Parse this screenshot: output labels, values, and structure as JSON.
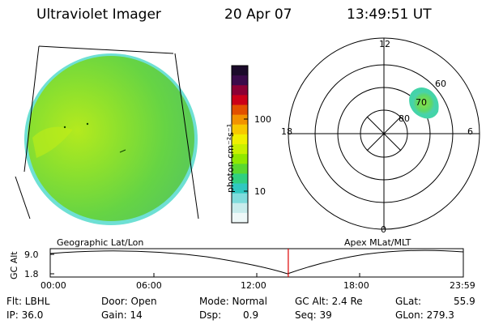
{
  "header": {
    "instrument": "Ultraviolet Imager",
    "date": "20 Apr 07",
    "time": "13:49:51 UT"
  },
  "colorbar": {
    "unit_label": "photon cm⁻²s⁻¹",
    "ticks": [
      "100",
      "10"
    ],
    "colors": [
      "#1b0a2a",
      "#3a0a4a",
      "#8b0034",
      "#cc0018",
      "#e25000",
      "#f29200",
      "#f7c800",
      "#f0f000",
      "#c8f000",
      "#90e800",
      "#5ad830",
      "#30d080",
      "#30c8c0",
      "#80dcdc",
      "#c8ecec",
      "#eef8f8"
    ]
  },
  "polar_plot": {
    "mlt_labels": {
      "top": "12",
      "bottom": "0",
      "left": "18",
      "right": "6"
    },
    "lat_labels": [
      "60",
      "70",
      "80"
    ]
  },
  "timeline": {
    "left_label": "Geographic Lat/Lon",
    "right_label": "Apex MLat/MLT",
    "y_axis_label": "GC Alt",
    "y_ticks": [
      "9.0",
      "1.8"
    ],
    "x_ticks": [
      "00:00",
      "06:00",
      "12:00",
      "18:00",
      "23:59"
    ],
    "current_time_fraction": 0.5763,
    "marker_color": "#dd0000"
  },
  "status": {
    "flt": "Flt: LBHL",
    "ip": "IP: 36.0",
    "door": "Door: Open",
    "gain": "Gain: 14",
    "mode": "Mode: Normal",
    "dsp": "Dsp:",
    "dsp_value": "0.9",
    "gc_alt": "GC Alt: 2.4 Re",
    "seq": "Seq: 39",
    "glat": "GLat:",
    "glat_value": "55.9",
    "glon": "GLon: 279.3"
  }
}
